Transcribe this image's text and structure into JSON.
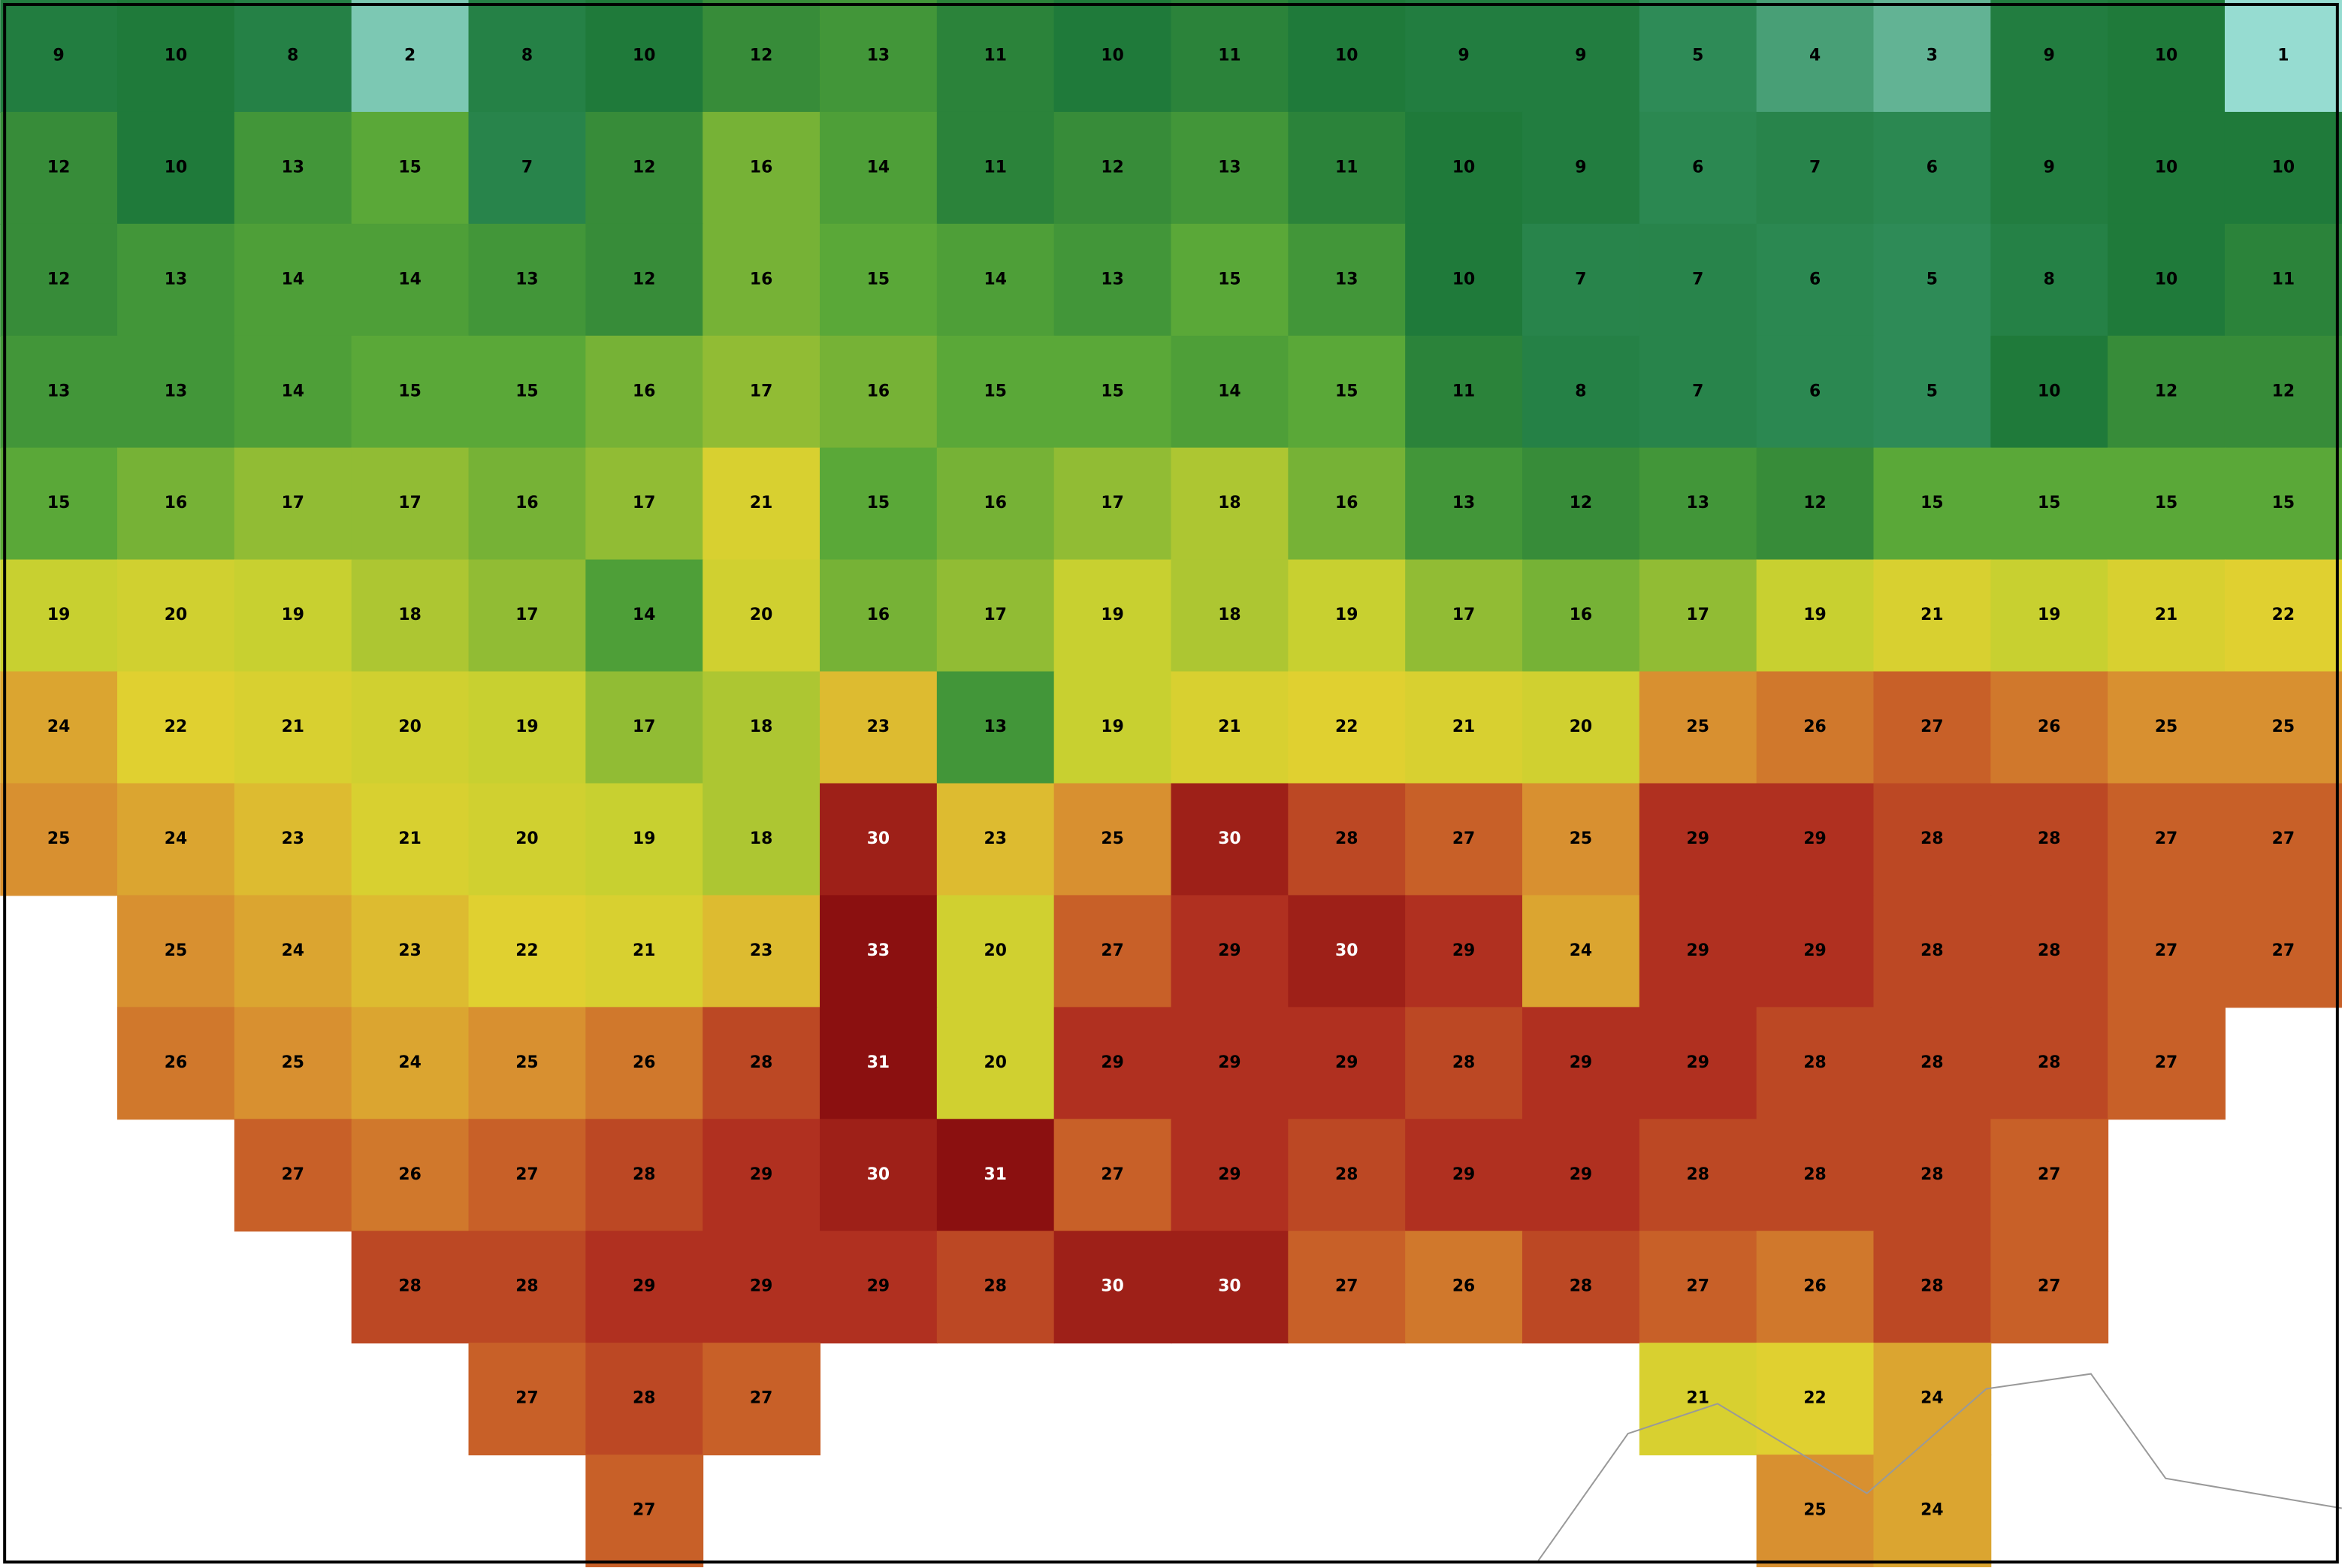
{
  "map": {
    "grid": [
      [
        9,
        10,
        8,
        2,
        8,
        10,
        12,
        13,
        11,
        10,
        11,
        10,
        9,
        9,
        5,
        4,
        3,
        9,
        10,
        1
      ],
      [
        12,
        10,
        13,
        15,
        7,
        12,
        16,
        14,
        11,
        12,
        13,
        11,
        10,
        9,
        6,
        7,
        6,
        9,
        10,
        10
      ],
      [
        12,
        13,
        14,
        14,
        13,
        12,
        16,
        15,
        14,
        13,
        15,
        13,
        10,
        7,
        7,
        6,
        5,
        8,
        10,
        11
      ],
      [
        13,
        13,
        14,
        15,
        15,
        16,
        17,
        16,
        15,
        15,
        14,
        15,
        11,
        8,
        7,
        6,
        5,
        10,
        12,
        12
      ],
      [
        15,
        16,
        17,
        17,
        16,
        17,
        21,
        15,
        16,
        17,
        18,
        16,
        13,
        12,
        13,
        12,
        15,
        15,
        15,
        15
      ],
      [
        19,
        20,
        19,
        18,
        17,
        14,
        20,
        16,
        17,
        19,
        18,
        19,
        17,
        16,
        17,
        19,
        21,
        19,
        21,
        22
      ],
      [
        24,
        22,
        21,
        20,
        19,
        17,
        18,
        23,
        13,
        19,
        21,
        22,
        21,
        20,
        25,
        26,
        27,
        26,
        25,
        25
      ],
      [
        25,
        24,
        23,
        21,
        20,
        19,
        18,
        30,
        23,
        25,
        30,
        28,
        27,
        25,
        29,
        29,
        28,
        28,
        27,
        27
      ],
      [
        null,
        25,
        24,
        23,
        22,
        21,
        23,
        33,
        20,
        27,
        29,
        30,
        29,
        24,
        29,
        29,
        28,
        28,
        27,
        27
      ],
      [
        null,
        26,
        25,
        24,
        25,
        26,
        28,
        31,
        20,
        29,
        29,
        29,
        28,
        29,
        29,
        28,
        28,
        28,
        27,
        null
      ],
      [
        null,
        null,
        27,
        26,
        27,
        28,
        29,
        30,
        31,
        27,
        29,
        28,
        29,
        29,
        28,
        28,
        28,
        27,
        null,
        null
      ],
      [
        null,
        null,
        null,
        28,
        28,
        29,
        29,
        29,
        28,
        30,
        30,
        27,
        26,
        28,
        27,
        26,
        28,
        27,
        null,
        null
      ],
      [
        null,
        null,
        null,
        null,
        27,
        28,
        27,
        null,
        null,
        null,
        null,
        null,
        null,
        null,
        21,
        22,
        24,
        null,
        null,
        null
      ],
      [
        null,
        null,
        null,
        null,
        null,
        27,
        null,
        null,
        null,
        null,
        null,
        null,
        null,
        null,
        null,
        25,
        24,
        null,
        null,
        null
      ]
    ]
  }
}
